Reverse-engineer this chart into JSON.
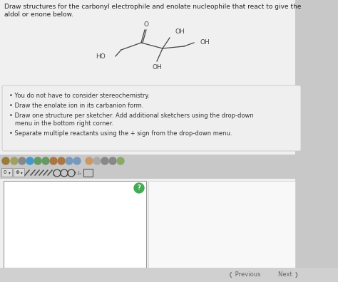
{
  "bg_color": "#c8c8c8",
  "content_bg": "#f0f0f0",
  "title_text_line1": "Draw structures for the carbonyl electrophile and enolate nucleophile that react to give the",
  "title_text_line2": "aldol or enone below.",
  "title_fontsize": 6.5,
  "title_color": "#222222",
  "bullet_box_color": "#efefef",
  "bullet_box_edge": "#cccccc",
  "bullets": [
    "You do not have to consider stereochemistry.",
    "Draw the enolate ion in its carbanion form.",
    "Draw one structure per sketcher. Add additional sketchers using the drop-down",
    "   menu in the bottom right corner.",
    "Separate multiple reactants using the + sign from the drop-down menu."
  ],
  "bullet_fontsize": 6.0,
  "bullet_color": "#333333",
  "toolbar_bg": "#c0c0c0",
  "sketch1_color": "#ffffff",
  "sketch1_edge": "#999999",
  "sketch2_color": "#e8e8e8",
  "nav_color": "#666666",
  "nav_fontsize": 6.0,
  "bond_color": "#444444",
  "mol_fontsize": 6.5
}
